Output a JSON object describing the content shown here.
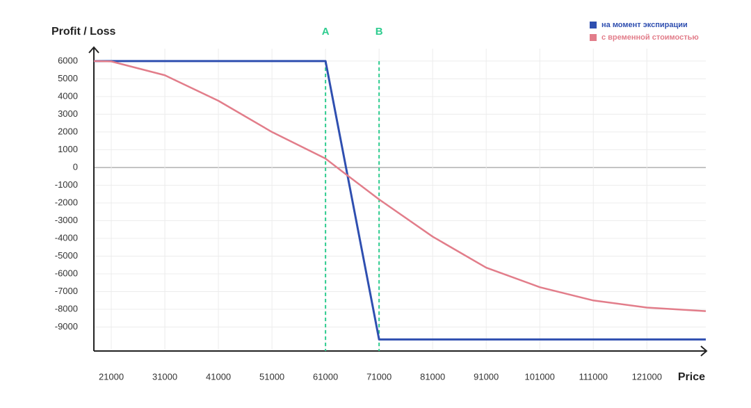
{
  "chart_data": {
    "type": "line",
    "y_label": "Profit / Loss",
    "x_label": "Price",
    "xlim": [
      17750,
      132000
    ],
    "ylim": [
      -10350,
      6700
    ],
    "xticks": [
      21000,
      31000,
      41000,
      51000,
      61000,
      71000,
      81000,
      91000,
      101000,
      111000,
      121000
    ],
    "yticks": [
      6000,
      5000,
      4000,
      3000,
      2000,
      1000,
      0,
      -1000,
      -2000,
      -3000,
      -4000,
      -5000,
      -6000,
      -7000,
      -8000,
      -9000
    ],
    "grid": true,
    "legend": "top-right",
    "markers": [
      {
        "label": "A",
        "x": 61000,
        "color": "#2ecc8f"
      },
      {
        "label": "B",
        "x": 71000,
        "color": "#2ecc8f"
      }
    ],
    "series": [
      {
        "name": "на момент экспирации",
        "color": "#2f4fb0",
        "x": [
          17750,
          61000,
          71000,
          132000
        ],
        "values": [
          6000,
          6000,
          -9700,
          -9700
        ]
      },
      {
        "name": "с временной стоимостью",
        "color": "#e27d8a",
        "x": [
          17750,
          21000,
          31000,
          41000,
          51000,
          61000,
          64000,
          71000,
          81000,
          91000,
          101000,
          111000,
          121000,
          132000
        ],
        "values": [
          6000,
          5980,
          5200,
          3760,
          2000,
          500,
          -200,
          -1800,
          -3900,
          -5650,
          -6750,
          -7500,
          -7900,
          -8100
        ]
      }
    ]
  }
}
